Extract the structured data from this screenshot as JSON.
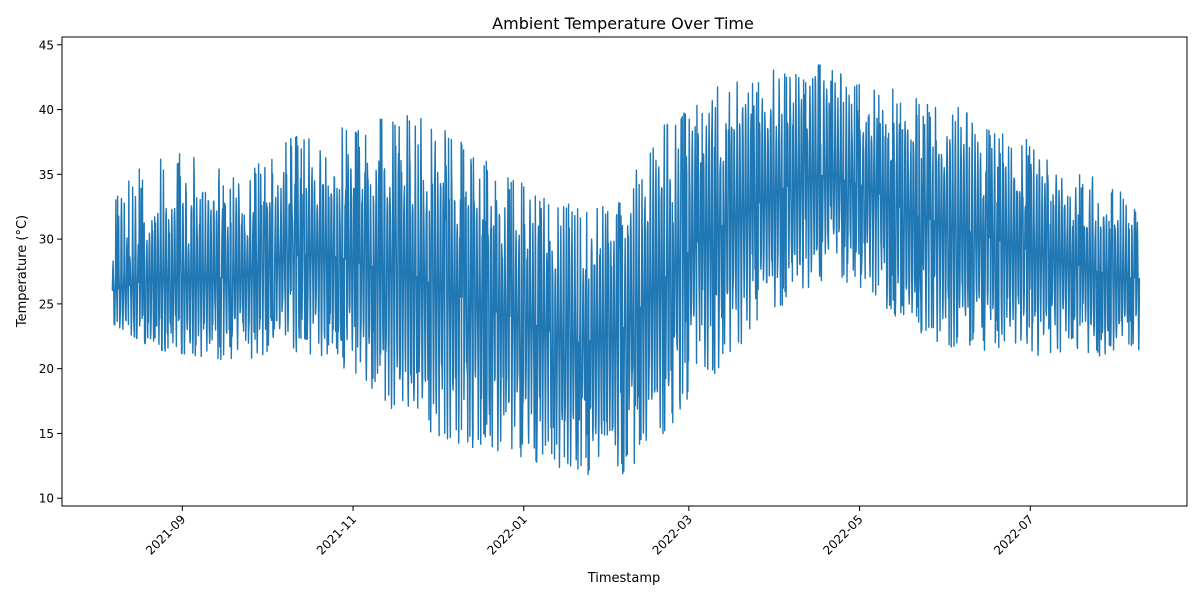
{
  "chart_data": {
    "type": "line",
    "title": "Ambient Temperature Over Time",
    "xlabel": "Timestamp",
    "ylabel": "Temperature (°C)",
    "x_range": [
      "2021-08-07",
      "2022-08-09"
    ],
    "xlim": [
      "2021-07-20",
      "2022-08-26"
    ],
    "ylim": [
      9.4,
      45.6
    ],
    "x_ticks": [
      "2021-09",
      "2021-11",
      "2022-01",
      "2022-03",
      "2022-05",
      "2022-07"
    ],
    "x_tick_dates": [
      "2021-09-01",
      "2021-11-01",
      "2022-01-01",
      "2022-03-01",
      "2022-05-01",
      "2022-07-01"
    ],
    "y_ticks": [
      10,
      15,
      20,
      25,
      30,
      35,
      40,
      45
    ],
    "grid": false,
    "legend": "none",
    "series": [
      {
        "color": "#1f77b4",
        "x": [
          "2021-08-07",
          "2021-08-22",
          "2021-09-06",
          "2021-09-21",
          "2021-10-06",
          "2021-10-21",
          "2021-11-05",
          "2021-11-20",
          "2021-12-05",
          "2021-12-20",
          "2022-01-04",
          "2022-01-19",
          "2022-02-03",
          "2022-02-18",
          "2022-03-05",
          "2022-03-20",
          "2022-04-04",
          "2022-04-19",
          "2022-05-04",
          "2022-05-19",
          "2022-06-03",
          "2022-06-18",
          "2022-07-03",
          "2022-07-18",
          "2022-08-02",
          "2022-08-09"
        ],
        "y_min": [
          23.5,
          21.5,
          21.0,
          20.5,
          21.5,
          21.0,
          18.5,
          16.0,
          14.5,
          13.5,
          12.5,
          12.0,
          11.0,
          14.5,
          18.0,
          22.0,
          25.0,
          27.0,
          26.0,
          23.0,
          21.0,
          21.5,
          21.0,
          21.5,
          20.5,
          21.5
        ],
        "y_max": [
          33.3,
          36.8,
          36.6,
          34.5,
          37.5,
          38.8,
          39.2,
          40.0,
          38.5,
          36.0,
          34.0,
          32.5,
          32.5,
          38.5,
          40.5,
          43.5,
          43.0,
          43.8,
          42.5,
          41.0,
          40.5,
          39.0,
          37.7,
          35.5,
          33.8,
          33.5
        ],
        "y_mean": [
          26.0,
          27.0,
          27.0,
          27.0,
          28.5,
          29.0,
          28.0,
          27.5,
          26.0,
          24.5,
          23.5,
          22.0,
          22.5,
          26.5,
          30.0,
          32.0,
          34.0,
          35.0,
          34.0,
          32.0,
          31.0,
          30.0,
          29.0,
          28.0,
          27.0,
          27.0
        ]
      }
    ]
  }
}
